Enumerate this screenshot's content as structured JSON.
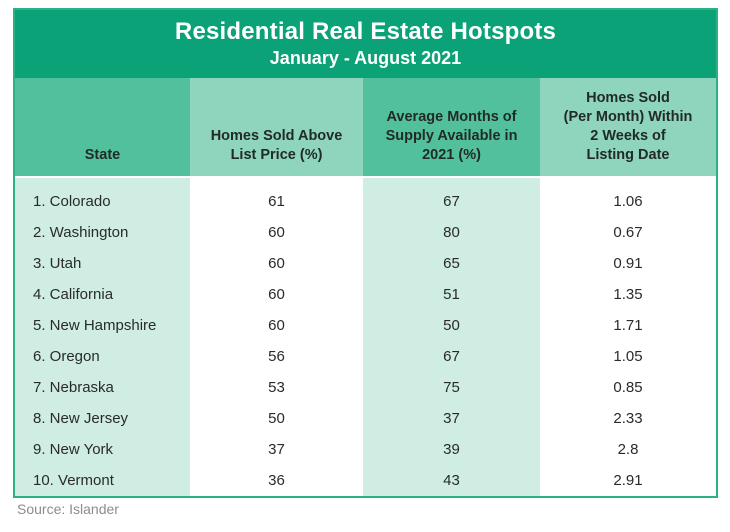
{
  "title": "Residential Real Estate Hotspots",
  "subtitle": "January - August 2021",
  "source": "Source: Islander",
  "colors": {
    "title_bar": "#0AA276",
    "header_dark": "#52C09C",
    "header_light": "#8FD5BD",
    "row_mint": "#CFEDE2",
    "row_white": "#FFFFFF",
    "table_border": "#2CB086",
    "text_dark": "#212B26",
    "text_body": "#2A2A2A",
    "source_text": "#8C8C8C"
  },
  "table": {
    "headers": [
      "State",
      "Homes Sold Above\nList Price (%)",
      "Average Months of\nSupply Available in\n2021 (%)",
      "Homes Sold\n(Per Month) Within\n2 Weeks of\nListing Date"
    ],
    "rows": [
      {
        "state": "1. Colorado",
        "above_list": "61",
        "supply": "67",
        "sold_2wk": "1.06"
      },
      {
        "state": "2. Washington",
        "above_list": "60",
        "supply": "80",
        "sold_2wk": "0.67"
      },
      {
        "state": "3. Utah",
        "above_list": "60",
        "supply": "65",
        "sold_2wk": "0.91"
      },
      {
        "state": "4. California",
        "above_list": "60",
        "supply": "51",
        "sold_2wk": "1.35"
      },
      {
        "state": "5. New Hampshire",
        "above_list": "60",
        "supply": "50",
        "sold_2wk": "1.71"
      },
      {
        "state": "6. Oregon",
        "above_list": "56",
        "supply": "67",
        "sold_2wk": "1.05"
      },
      {
        "state": "7. Nebraska",
        "above_list": "53",
        "supply": "75",
        "sold_2wk": "0.85"
      },
      {
        "state": "8. New Jersey",
        "above_list": "50",
        "supply": "37",
        "sold_2wk": "2.33"
      },
      {
        "state": "9. New York",
        "above_list": "37",
        "supply": "39",
        "sold_2wk": "2.8"
      },
      {
        "state": "10. Vermont",
        "above_list": "36",
        "supply": "43",
        "sold_2wk": "2.91"
      }
    ]
  },
  "chart_data": {
    "type": "table",
    "title": "Residential Real Estate Hotspots",
    "subtitle": "January - August 2021",
    "columns": [
      "State",
      "Homes Sold Above List Price (%)",
      "Average Months of Supply Available in 2021 (%)",
      "Homes Sold (Per Month) Within 2 Weeks of Listing Date"
    ],
    "rows": [
      [
        "1. Colorado",
        61,
        67,
        1.06
      ],
      [
        "2. Washington",
        60,
        80,
        0.67
      ],
      [
        "3. Utah",
        60,
        65,
        0.91
      ],
      [
        "4. California",
        60,
        51,
        1.35
      ],
      [
        "5. New Hampshire",
        60,
        50,
        1.71
      ],
      [
        "6. Oregon",
        56,
        67,
        1.05
      ],
      [
        "7. Nebraska",
        53,
        75,
        0.85
      ],
      [
        "8. New Jersey",
        50,
        37,
        2.33
      ],
      [
        "9. New York",
        37,
        39,
        2.8
      ],
      [
        "10. Vermont",
        36,
        43,
        2.91
      ]
    ],
    "source": "Islander",
    "layout_hints": {
      "striped_columns": true,
      "header_alignment": "bottom",
      "state_column_alignment": "left",
      "value_columns_alignment": "center"
    }
  }
}
